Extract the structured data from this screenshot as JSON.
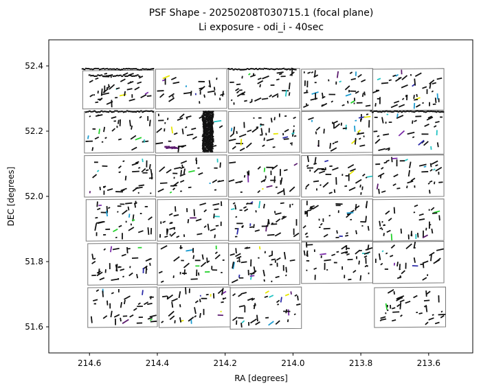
{
  "chart_data": {
    "type": "scatter",
    "title": "PSF Shape - 20250208T030715.1 (focal plane)",
    "subtitle": "Li exposure - odi_i - 40sec",
    "xlabel": "RA [degrees]",
    "ylabel": "DEC [degrees]",
    "xlim": [
      214.72,
      213.47
    ],
    "ylim": [
      51.52,
      52.48
    ],
    "x_inverted": true,
    "grid": false,
    "x_ticks": [
      214.6,
      214.4,
      214.2,
      214.0,
      213.8,
      213.6
    ],
    "x_tick_labels": [
      "214.6",
      "214.4",
      "214.2",
      "214.0",
      "213.8",
      "213.6"
    ],
    "y_ticks": [
      51.6,
      51.8,
      52.0,
      52.2,
      52.4
    ],
    "y_tick_labels": [
      "51.6",
      "51.8",
      "52.0",
      "52.2",
      "52.4"
    ],
    "ccds": [
      {
        "ra_left": 214.62,
        "ra_right": 214.41,
        "dec_top": 52.385,
        "dec_bottom": 52.27
      },
      {
        "ra_left": 214.405,
        "ra_right": 214.195,
        "dec_top": 52.39,
        "dec_bottom": 52.27
      },
      {
        "ra_left": 214.19,
        "ra_right": 213.98,
        "dec_top": 52.39,
        "dec_bottom": 52.27
      },
      {
        "ra_left": 213.975,
        "ra_right": 213.765,
        "dec_top": 52.39,
        "dec_bottom": 52.265
      },
      {
        "ra_left": 213.765,
        "ra_right": 213.555,
        "dec_top": 52.39,
        "dec_bottom": 52.265
      },
      {
        "ra_left": 214.615,
        "ra_right": 214.41,
        "dec_top": 52.26,
        "dec_bottom": 52.135
      },
      {
        "ra_left": 214.405,
        "ra_right": 214.195,
        "dec_top": 52.26,
        "dec_bottom": 52.135
      },
      {
        "ra_left": 214.19,
        "ra_right": 213.98,
        "dec_top": 52.26,
        "dec_bottom": 52.135
      },
      {
        "ra_left": 213.975,
        "ra_right": 213.765,
        "dec_top": 52.26,
        "dec_bottom": 52.135
      },
      {
        "ra_left": 213.765,
        "ra_right": 213.555,
        "dec_top": 52.26,
        "dec_bottom": 52.13
      },
      {
        "ra_left": 214.615,
        "ra_right": 214.405,
        "dec_top": 52.125,
        "dec_bottom": 52.0
      },
      {
        "ra_left": 214.405,
        "ra_right": 214.195,
        "dec_top": 52.125,
        "dec_bottom": 52.0
      },
      {
        "ra_left": 214.19,
        "ra_right": 213.98,
        "dec_top": 52.125,
        "dec_bottom": 52.0
      },
      {
        "ra_left": 213.975,
        "ra_right": 213.765,
        "dec_top": 52.125,
        "dec_bottom": 52.0
      },
      {
        "ra_left": 213.765,
        "ra_right": 213.555,
        "dec_top": 52.125,
        "dec_bottom": 52.0
      },
      {
        "ra_left": 214.61,
        "ra_right": 214.405,
        "dec_top": 51.99,
        "dec_bottom": 51.865
      },
      {
        "ra_left": 214.4,
        "ra_right": 214.19,
        "dec_top": 51.99,
        "dec_bottom": 51.865
      },
      {
        "ra_left": 214.19,
        "ra_right": 213.98,
        "dec_top": 51.99,
        "dec_bottom": 51.865
      },
      {
        "ra_left": 213.975,
        "ra_right": 213.765,
        "dec_top": 51.99,
        "dec_bottom": 51.865
      },
      {
        "ra_left": 213.765,
        "ra_right": 213.555,
        "dec_top": 51.99,
        "dec_bottom": 51.865
      },
      {
        "ra_left": 214.605,
        "ra_right": 214.4,
        "dec_top": 51.855,
        "dec_bottom": 51.73
      },
      {
        "ra_left": 214.4,
        "ra_right": 214.19,
        "dec_top": 51.855,
        "dec_bottom": 51.73
      },
      {
        "ra_left": 214.19,
        "ra_right": 213.98,
        "dec_top": 51.855,
        "dec_bottom": 51.73
      },
      {
        "ra_left": 213.975,
        "ra_right": 213.765,
        "dec_top": 51.86,
        "dec_bottom": 51.735
      },
      {
        "ra_left": 213.765,
        "ra_right": 213.555,
        "dec_top": 51.86,
        "dec_bottom": 51.735
      },
      {
        "ra_left": 214.605,
        "ra_right": 214.4,
        "dec_top": 51.72,
        "dec_bottom": 51.6
      },
      {
        "ra_left": 214.395,
        "ra_right": 214.185,
        "dec_top": 51.72,
        "dec_bottom": 51.6
      },
      {
        "ra_left": 214.185,
        "ra_right": 213.975,
        "dec_top": 51.72,
        "dec_bottom": 51.595
      },
      {
        "ra_left": 213.76,
        "ra_right": 213.55,
        "dec_top": 51.72,
        "dec_bottom": 51.6
      }
    ],
    "psf_colors": [
      "#111111",
      "#5b1a6e",
      "#2a2aa8",
      "#7a2aa8",
      "#1b9bd0",
      "#22c3c3",
      "#23d12b",
      "#e6e600"
    ]
  }
}
